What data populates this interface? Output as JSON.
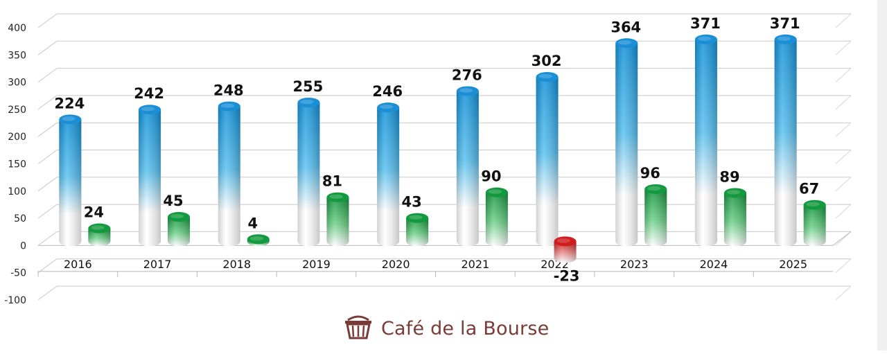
{
  "chart_data": {
    "type": "bar",
    "categories": [
      "2016",
      "2017",
      "2018",
      "2019",
      "2020",
      "2021",
      "2022",
      "2023",
      "2024",
      "2025"
    ],
    "series": [
      {
        "values": [
          224,
          242,
          248,
          255,
          246,
          276,
          302,
          364,
          371,
          371
        ],
        "color": "#1f9be0"
      },
      {
        "values": [
          24,
          45,
          4,
          81,
          43,
          90,
          -23,
          96,
          89,
          67
        ],
        "color": "#1fa64a",
        "negative_color": "#d01c1c"
      }
    ],
    "y_ticks": [
      "400",
      "350",
      "300",
      "250",
      "200",
      "150",
      "100",
      "50",
      "0",
      "-50",
      "-100"
    ],
    "ylim": [
      -100,
      400
    ],
    "grid": true,
    "style": "3d-cylinder"
  },
  "brand": {
    "name": "Café de la Bourse",
    "icon": "basket-icon",
    "color": "#7a3a35"
  }
}
